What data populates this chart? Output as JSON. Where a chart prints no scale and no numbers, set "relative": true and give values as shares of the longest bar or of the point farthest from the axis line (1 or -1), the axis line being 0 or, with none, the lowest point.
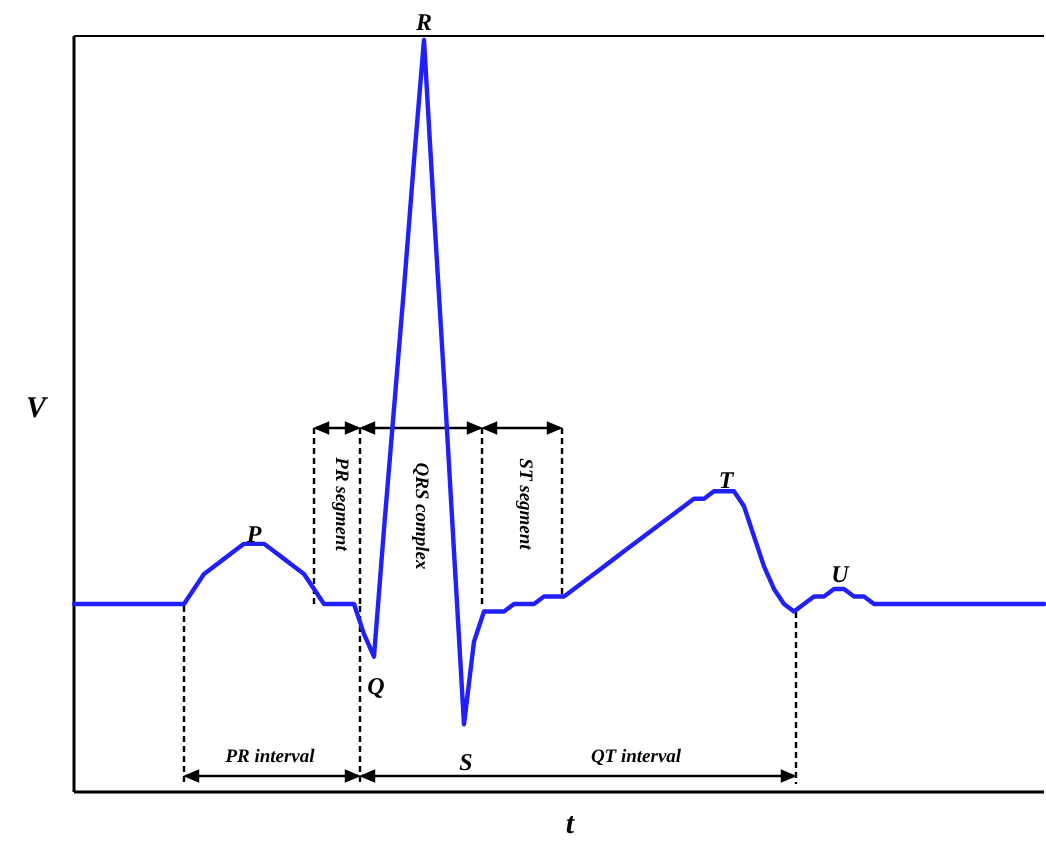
{
  "chart_data": {
    "type": "line",
    "relative": true,
    "xlabel": "t",
    "ylabel": "V",
    "categories": [
      null,
      null,
      null,
      null,
      null,
      null,
      null,
      null,
      null,
      null,
      null,
      null,
      null,
      null,
      null,
      null,
      null,
      null,
      null,
      null,
      null,
      null,
      null,
      null,
      null,
      null,
      null,
      null,
      null,
      null,
      null,
      null,
      null,
      null,
      null,
      null,
      null,
      null,
      null,
      null,
      null,
      null,
      null,
      null,
      null,
      null,
      null,
      null,
      null,
      null,
      null,
      null,
      null,
      null,
      null,
      null,
      null,
      null,
      null,
      null,
      null,
      null,
      null,
      null,
      null,
      null,
      null,
      null,
      null,
      null,
      null,
      null,
      null,
      null,
      null,
      null,
      null,
      null,
      null,
      null,
      null,
      null,
      null,
      null,
      null,
      null,
      null,
      null,
      null,
      null,
      null,
      null,
      null,
      null,
      null,
      null,
      null,
      null
    ],
    "series": [
      {
        "color": "#1f1fff",
        "values": [
          0.25,
          0.25,
          0.25,
          0.25,
          0.25,
          0.25,
          0.25,
          0.25,
          0.25,
          0.25,
          0.25,
          0.25,
          0.27,
          0.29,
          0.3,
          0.31,
          0.32,
          0.33,
          0.33,
          0.33,
          0.32,
          0.31,
          0.3,
          0.29,
          0.27,
          0.25,
          0.25,
          0.25,
          0.25,
          0.21,
          0.18,
          0.35,
          0.51,
          0.67,
          0.84,
          1,
          0.77,
          0.55,
          0.32,
          0.09,
          0.2,
          0.24,
          0.24,
          0.24,
          0.25,
          0.25,
          0.25,
          0.26,
          0.26,
          0.26,
          0.27,
          0.28,
          0.29,
          0.3,
          0.31,
          0.32,
          0.33,
          0.34,
          0.35,
          0.36,
          0.37,
          0.38,
          0.39,
          0.39,
          0.4,
          0.4,
          0.4,
          0.38,
          0.34,
          0.3,
          0.27,
          0.25,
          0.24,
          0.25,
          0.26,
          0.26,
          0.27,
          0.27,
          0.26,
          0.26,
          0.25,
          0.25,
          0.25,
          0.25,
          0.25,
          0.25,
          0.25,
          0.25,
          0.25,
          0.25,
          0.25,
          0.25,
          0.25,
          0.25,
          0.25,
          0.25,
          0.25,
          0.25
        ]
      }
    ],
    "annotations": [
      "P",
      "Q",
      "R",
      "S",
      "T",
      "U",
      "PR segment",
      "QRS complex",
      "ST segment",
      "PR interval",
      "QT interval"
    ],
    "marker": "none",
    "line_style": "solid"
  }
}
